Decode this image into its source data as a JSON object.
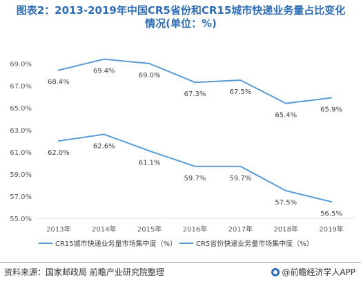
{
  "title_line1": "图表2：2013-2019年中国CR5省份和CR15城市快递业务量占比变化",
  "title_line2": "情况(单位：%)",
  "source": "资料来源：国家邮政局 前瞻产业研究院整理",
  "brand": "@前瞻经济学人APP",
  "chart_data": {
    "type": "line",
    "categories": [
      "2013年",
      "2014年",
      "2015年",
      "2016年",
      "2017年",
      "2018年",
      "2019年"
    ],
    "series": [
      {
        "name": "CR15城市快递业务量市场集中度（%）",
        "values": [
          68.4,
          69.4,
          69.0,
          67.3,
          67.5,
          65.4,
          65.9
        ],
        "labels": [
          "68.4%",
          "69.4%",
          "69.0%",
          "67.3%",
          "67.5%",
          "65.4%",
          "65.9%"
        ],
        "color": "#5b9bd5"
      },
      {
        "name": "CR5省份快递业务量市场集中度（%）",
        "values": [
          62.0,
          62.6,
          61.1,
          59.7,
          59.7,
          57.5,
          56.5
        ],
        "labels": [
          "62.0%",
          "62.6%",
          "61.1%",
          "59.7%",
          "59.7%",
          "57.5%",
          "56.5%"
        ],
        "color": "#5b9bd5"
      }
    ],
    "yticks": [
      "55.0%",
      "57.0%",
      "59.0%",
      "61.0%",
      "63.0%",
      "65.0%",
      "67.0%",
      "69.0%"
    ],
    "ylim": [
      55,
      69
    ],
    "grid": false,
    "legend": "bottom"
  }
}
